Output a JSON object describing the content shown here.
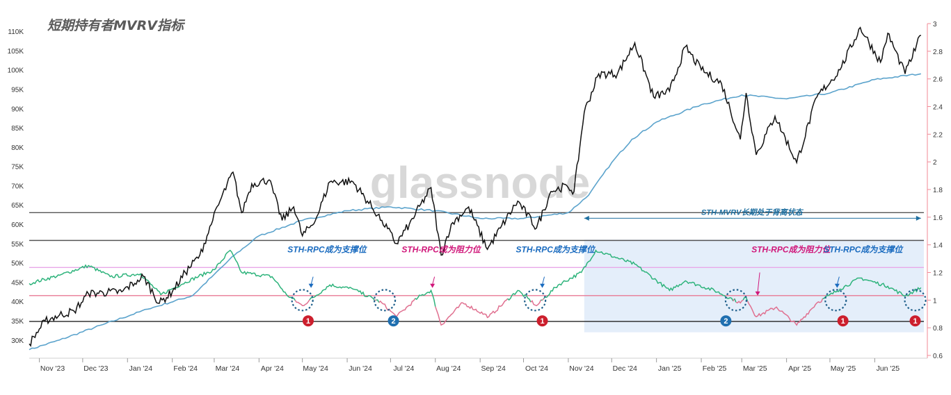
{
  "chart_data": {
    "type": "line",
    "title": "短期持有者MVRV指标",
    "watermark": "glassnode",
    "x_ticks": [
      "Nov '23",
      "Dec '23",
      "Jan '24",
      "Feb '24",
      "Mar '24",
      "Apr '24",
      "May '24",
      "Jun '24",
      "Jul '24",
      "Aug '24",
      "Sep '24",
      "Oct '24",
      "Nov '24",
      "Dec '24",
      "Jan '25",
      "Feb '25",
      "Mar '25",
      "Apr '25",
      "May '25",
      "Jun '25"
    ],
    "x_range": [
      "2023-10-25",
      "2025-07-05"
    ],
    "y_left": {
      "ticks": [
        "30K",
        "35K",
        "40K",
        "45K",
        "50K",
        "55K",
        "60K",
        "65K",
        "70K",
        "75K",
        "80K",
        "85K",
        "90K",
        "95K",
        "100K",
        "105K",
        "110K"
      ],
      "range": [
        26000,
        112000
      ]
    },
    "y_right": {
      "ticks": [
        "0.6",
        "0.8",
        "1",
        "1.2",
        "1.4",
        "1.6",
        "1.8",
        "2",
        "2.2",
        "2.4",
        "2.6",
        "2.8",
        "3"
      ],
      "range": [
        0.6,
        3.0
      ],
      "scale": "linear"
    },
    "grid": false,
    "reference_lines": [
      {
        "axis": "left",
        "value": 63000,
        "color": "#555555"
      },
      {
        "axis": "left",
        "value": 55800,
        "color": "#555555"
      },
      {
        "axis": "left",
        "value": 34800,
        "color": "#222222"
      },
      {
        "axis": "left",
        "value": 48800,
        "color": "#e8a8e8"
      },
      {
        "axis": "left",
        "value": 41500,
        "color": "#e87a94"
      }
    ],
    "highlight_region": {
      "x_start": "2024-11-12",
      "x_end": "2025-07-05",
      "color": "#dbe8f8"
    },
    "series": [
      {
        "role": "price",
        "axis": "left",
        "color": "#111111",
        "points": [
          [
            "2023-10-25",
            29000
          ],
          [
            "2023-11-05",
            35000
          ],
          [
            "2023-11-15",
            36500
          ],
          [
            "2023-11-25",
            37500
          ],
          [
            "2023-12-05",
            42000
          ],
          [
            "2023-12-15",
            42300
          ],
          [
            "2023-12-28",
            42500
          ],
          [
            "2024-01-08",
            45500
          ],
          [
            "2024-01-12",
            46500
          ],
          [
            "2024-01-23",
            39500
          ],
          [
            "2024-02-01",
            42500
          ],
          [
            "2024-02-10",
            47500
          ],
          [
            "2024-02-20",
            52000
          ],
          [
            "2024-02-29",
            61000
          ],
          [
            "2024-03-05",
            66000
          ],
          [
            "2024-03-14",
            73500
          ],
          [
            "2024-03-20",
            63000
          ],
          [
            "2024-03-27",
            70500
          ],
          [
            "2024-04-08",
            71500
          ],
          [
            "2024-04-17",
            61000
          ],
          [
            "2024-04-25",
            64500
          ],
          [
            "2024-05-01",
            57000
          ],
          [
            "2024-05-10",
            61000
          ],
          [
            "2024-05-20",
            71000
          ],
          [
            "2024-06-05",
            71000
          ],
          [
            "2024-06-15",
            66000
          ],
          [
            "2024-06-25",
            61000
          ],
          [
            "2024-07-05",
            55000
          ],
          [
            "2024-07-14",
            60000
          ],
          [
            "2024-07-29",
            69500
          ],
          [
            "2024-08-05",
            52000
          ],
          [
            "2024-08-12",
            60000
          ],
          [
            "2024-08-24",
            64500
          ],
          [
            "2024-09-06",
            53500
          ],
          [
            "2024-09-15",
            59000
          ],
          [
            "2024-09-27",
            66000
          ],
          [
            "2024-10-10",
            59000
          ],
          [
            "2024-10-20",
            68500
          ],
          [
            "2024-10-31",
            70000
          ],
          [
            "2024-11-05",
            68500
          ],
          [
            "2024-11-12",
            89000
          ],
          [
            "2024-11-22",
            99000
          ],
          [
            "2024-12-05",
            99000
          ],
          [
            "2024-12-17",
            107000
          ],
          [
            "2024-12-30",
            93000
          ],
          [
            "2025-01-10",
            94500
          ],
          [
            "2025-01-21",
            106000
          ],
          [
            "2025-02-01",
            100000
          ],
          [
            "2025-02-15",
            96500
          ],
          [
            "2025-02-28",
            82000
          ],
          [
            "2025-03-04",
            94000
          ],
          [
            "2025-03-11",
            78000
          ],
          [
            "2025-03-24",
            88000
          ],
          [
            "2025-04-08",
            76000
          ],
          [
            "2025-04-22",
            93000
          ],
          [
            "2025-05-08",
            100000
          ],
          [
            "2025-05-22",
            111000
          ],
          [
            "2025-06-05",
            102000
          ],
          [
            "2025-06-10",
            109500
          ],
          [
            "2025-06-22",
            99000
          ],
          [
            "2025-07-03",
            109000
          ]
        ]
      },
      {
        "role": "realized_price",
        "axis": "left",
        "color": "#5ba3cc",
        "points": [
          [
            "2023-10-25",
            27500
          ],
          [
            "2023-11-15",
            30000
          ],
          [
            "2023-12-15",
            34000
          ],
          [
            "2024-01-15",
            38000
          ],
          [
            "2024-02-15",
            41500
          ],
          [
            "2024-03-01",
            47000
          ],
          [
            "2024-03-15",
            52000
          ],
          [
            "2024-04-01",
            57000
          ],
          [
            "2024-05-01",
            61000
          ],
          [
            "2024-06-01",
            63500
          ],
          [
            "2024-07-01",
            64500
          ],
          [
            "2024-08-01",
            63500
          ],
          [
            "2024-09-01",
            61500
          ],
          [
            "2024-10-01",
            61500
          ],
          [
            "2024-11-01",
            63000
          ],
          [
            "2024-11-15",
            67500
          ],
          [
            "2024-12-01",
            76000
          ],
          [
            "2024-12-15",
            82000
          ],
          [
            "2025-01-01",
            86500
          ],
          [
            "2025-02-01",
            91000
          ],
          [
            "2025-03-01",
            93500
          ],
          [
            "2025-04-01",
            92500
          ],
          [
            "2025-05-01",
            94000
          ],
          [
            "2025-06-01",
            97500
          ],
          [
            "2025-07-03",
            99000
          ]
        ]
      },
      {
        "role": "sth_mvrv",
        "axis": "right",
        "colors": {
          "above_1": "#2db37b",
          "below_1": "#e07090"
        },
        "points": [
          [
            "2023-10-25",
            1.12
          ],
          [
            "2023-11-15",
            1.18
          ],
          [
            "2023-12-05",
            1.25
          ],
          [
            "2023-12-20",
            1.17
          ],
          [
            "2024-01-10",
            1.19
          ],
          [
            "2024-01-24",
            1.04
          ],
          [
            "2024-02-10",
            1.13
          ],
          [
            "2024-03-01",
            1.22
          ],
          [
            "2024-03-12",
            1.36
          ],
          [
            "2024-03-20",
            1.2
          ],
          [
            "2024-04-10",
            1.17
          ],
          [
            "2024-04-20",
            1.04
          ],
          [
            "2024-05-01",
            0.96
          ],
          [
            "2024-05-20",
            1.11
          ],
          [
            "2024-06-05",
            1.08
          ],
          [
            "2024-06-25",
            0.98
          ],
          [
            "2024-07-05",
            0.88
          ],
          [
            "2024-07-20",
            1.02
          ],
          [
            "2024-07-29",
            1.07
          ],
          [
            "2024-08-05",
            0.82
          ],
          [
            "2024-08-20",
            0.98
          ],
          [
            "2024-09-07",
            0.88
          ],
          [
            "2024-09-27",
            1.07
          ],
          [
            "2024-10-10",
            0.96
          ],
          [
            "2024-10-25",
            1.11
          ],
          [
            "2024-11-10",
            1.2
          ],
          [
            "2024-11-20",
            1.36
          ],
          [
            "2024-12-17",
            1.26
          ],
          [
            "2025-01-10",
            1.07
          ],
          [
            "2025-01-21",
            1.14
          ],
          [
            "2025-02-10",
            1.07
          ],
          [
            "2025-02-28",
            0.98
          ],
          [
            "2025-03-04",
            1.02
          ],
          [
            "2025-03-11",
            0.88
          ],
          [
            "2025-03-25",
            0.95
          ],
          [
            "2025-04-08",
            0.82
          ],
          [
            "2025-04-22",
            0.98
          ],
          [
            "2025-05-08",
            1.08
          ],
          [
            "2025-05-22",
            1.16
          ],
          [
            "2025-06-10",
            1.1
          ],
          [
            "2025-06-22",
            1.03
          ],
          [
            "2025-07-03",
            1.09
          ]
        ]
      }
    ],
    "annotations": [
      {
        "text": "STH-MVRV长期处于背离状态",
        "color": "#1e6fa0",
        "x": "2025-03-08",
        "y_left": 63000,
        "arrow": "double",
        "x_start": "2024-11-12",
        "x_end": "2025-07-03"
      },
      {
        "text": "STH-RPC成为支撑位",
        "color": "#1a6bbf",
        "x": "2024-05-18",
        "y_left": 52700,
        "pointer": [
          "2024-05-07",
          46400,
          43500
        ]
      },
      {
        "text": "STH-RPC成为阻力位",
        "color": "#d0177a",
        "x": "2024-08-05",
        "y_left": 52700,
        "pointer": [
          "2024-07-30",
          46400,
          43500
        ]
      },
      {
        "text": "STH-RPC成为支撑位",
        "color": "#1a6bbf",
        "x": "2024-10-23",
        "y_left": 52700,
        "pointer": [
          "2024-10-14",
          46400,
          43500
        ]
      },
      {
        "text": "STH-RPC成为阻力位",
        "color": "#d0177a",
        "x": "2025-04-04",
        "y_left": 52700,
        "pointer": [
          "2025-03-12",
          47500,
          41500
        ]
      },
      {
        "text": "STH-RPC成为支撑位",
        "color": "#1a6bbf",
        "x": "2025-05-24",
        "y_left": 52700,
        "pointer": [
          "2025-05-06",
          46400,
          43500
        ]
      }
    ],
    "markers": [
      {
        "label": "1",
        "color": "#cc1f2d",
        "circle_x": "2024-05-01",
        "bubble_x": "2024-05-05"
      },
      {
        "label": "2",
        "color": "#1f6fb0",
        "circle_x": "2024-06-27",
        "bubble_x": "2024-07-03"
      },
      {
        "label": "1",
        "color": "#cc1f2d",
        "circle_x": "2024-10-09",
        "bubble_x": "2024-10-14"
      },
      {
        "label": "2",
        "color": "#1f6fb0",
        "circle_x": "2025-02-25",
        "bubble_x": "2025-02-18"
      },
      {
        "label": "1",
        "color": "#cc1f2d",
        "circle_x": "2025-05-05",
        "bubble_x": "2025-05-10"
      },
      {
        "label": "1",
        "color": "#cc1f2d",
        "circle_x": "2025-06-29",
        "bubble_x": "2025-06-29"
      }
    ]
  }
}
